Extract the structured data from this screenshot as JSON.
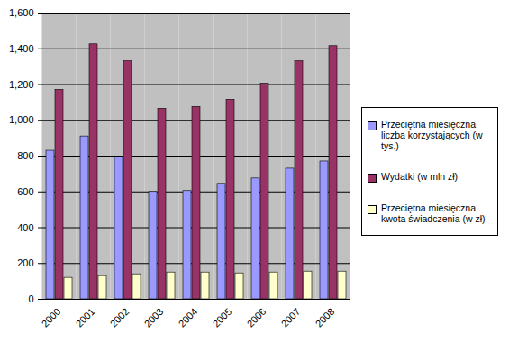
{
  "chart_data": {
    "type": "bar",
    "categories": [
      "2000",
      "2001",
      "2002",
      "2003",
      "2004",
      "2005",
      "2006",
      "2007",
      "2008"
    ],
    "series": [
      {
        "name": "Przeciętna miesięczna liczba korzystających (w tys.)",
        "color": "#9999ff",
        "values": [
          830,
          910,
          795,
          600,
          605,
          645,
          675,
          730,
          770
        ]
      },
      {
        "name": "Wydatki (w mln zł)",
        "color": "#993366",
        "values": [
          1170,
          1425,
          1330,
          1065,
          1075,
          1115,
          1205,
          1330,
          1415
        ]
      },
      {
        "name": "Przeciętna miesięczna kwota świadczenia (w zł)",
        "color": "#ffffcc",
        "values": [
          120,
          130,
          140,
          150,
          150,
          145,
          150,
          155,
          155
        ]
      }
    ],
    "ylim": [
      0,
      1600
    ],
    "yticks": [
      0,
      200,
      400,
      600,
      800,
      1000,
      1200,
      1400,
      1600
    ],
    "grid": true,
    "legend": "right"
  }
}
